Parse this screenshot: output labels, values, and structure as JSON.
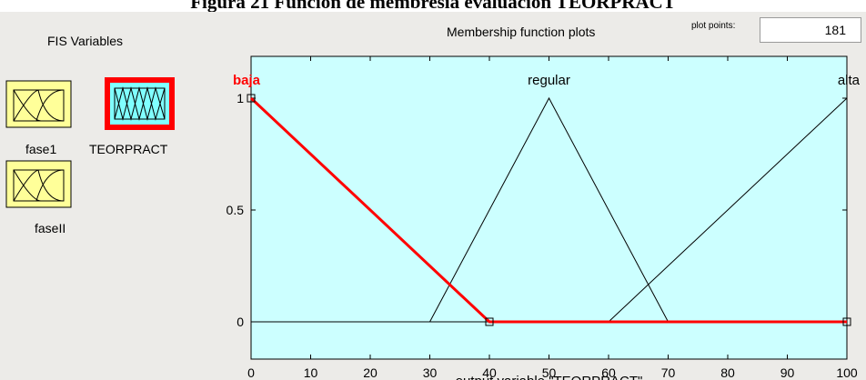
{
  "document": {
    "caption": "Figura 21 Función de membresía evaluación TEORPRACT"
  },
  "fis_panel": {
    "title": "FIS Variables",
    "variables": [
      {
        "label": "fase1",
        "selected": false
      },
      {
        "label": "TEORPRACT",
        "selected": true
      },
      {
        "label": "faseII",
        "selected": false
      }
    ],
    "input_box_color": "#ffff99",
    "output_box_color": "#80ffff",
    "selection_color": "#ff0000"
  },
  "plot_panel": {
    "title": "Membership function plots",
    "plot_points_label": "plot points:",
    "plot_points_value": "181",
    "background_color": "#ccffff"
  },
  "chart_data": {
    "type": "line",
    "xlabel": "output variable \"TEORPRACT\"",
    "ylabel": "",
    "xlim": [
      0,
      100
    ],
    "ylim": [
      0,
      1
    ],
    "xticks": [
      0,
      10,
      20,
      30,
      40,
      50,
      60,
      70,
      80,
      90,
      100
    ],
    "yticks": [
      0,
      0.5,
      1
    ],
    "series": [
      {
        "name": "baja",
        "x": [
          0,
          40,
          100
        ],
        "y": [
          1,
          0,
          0
        ],
        "color": "#ff0000",
        "highlighted": true
      },
      {
        "name": "regular",
        "x": [
          30,
          50,
          70
        ],
        "y": [
          0,
          1,
          0
        ],
        "color": "#000000",
        "highlighted": false
      },
      {
        "name": "alta",
        "x": [
          60,
          100
        ],
        "y": [
          0,
          1
        ],
        "color": "#000000",
        "highlighted": false
      }
    ]
  }
}
